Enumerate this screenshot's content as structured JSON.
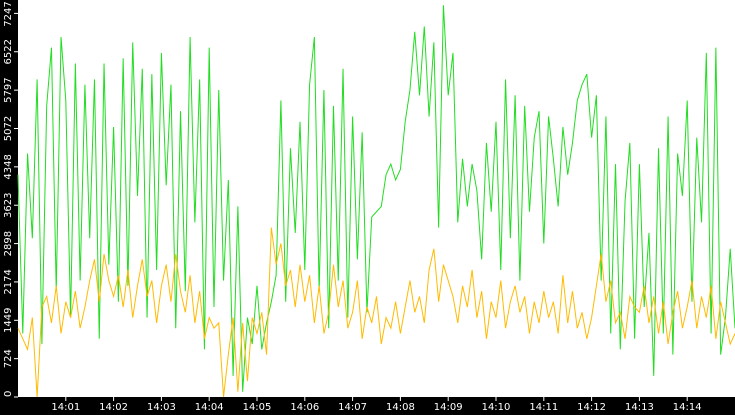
{
  "chart_data": {
    "type": "line",
    "categories": [
      null,
      null,
      null,
      null,
      null,
      null,
      null,
      null,
      null,
      null,
      "14:01",
      null,
      null,
      null,
      null,
      null,
      null,
      null,
      null,
      null,
      "14:02",
      null,
      null,
      null,
      null,
      null,
      null,
      null,
      null,
      null,
      "14:03",
      null,
      null,
      null,
      null,
      null,
      null,
      null,
      null,
      null,
      "14:04",
      null,
      null,
      null,
      null,
      null,
      null,
      null,
      null,
      null,
      "14:05",
      null,
      null,
      null,
      null,
      null,
      null,
      null,
      null,
      null,
      "14:06",
      null,
      null,
      null,
      null,
      null,
      null,
      null,
      null,
      null,
      "14:07",
      null,
      null,
      null,
      null,
      null,
      null,
      null,
      null,
      null,
      "14:08",
      null,
      null,
      null,
      null,
      null,
      null,
      null,
      null,
      null,
      "14:09",
      null,
      null,
      null,
      null,
      null,
      null,
      null,
      null,
      null,
      "14:10",
      null,
      null,
      null,
      null,
      null,
      null,
      null,
      null,
      null,
      "14:11",
      null,
      null,
      null,
      null,
      null,
      null,
      null,
      null,
      null,
      "14:12",
      null,
      null,
      null,
      null,
      null,
      null,
      null,
      null,
      null,
      "14:13",
      null,
      null,
      null,
      null,
      null,
      null,
      null,
      null,
      null,
      "14:14",
      null,
      null,
      null,
      null,
      null,
      null,
      null,
      null,
      null,
      null
    ],
    "series": [
      {
        "color": "#22dd22",
        "values": [
          4200,
          1200,
          4600,
          3000,
          6000,
          1000,
          5500,
          6600,
          2000,
          6800,
          5600,
          1500,
          6300,
          2200,
          5900,
          3000,
          6000,
          1100,
          6300,
          2500,
          5100,
          1800,
          6400,
          2100,
          6700,
          3800,
          6200,
          1500,
          6100,
          2400,
          6500,
          4000,
          5900,
          1300,
          5400,
          2000,
          6800,
          3300,
          6000,
          900,
          6600,
          1700,
          5800,
          2200,
          4100,
          400,
          3600,
          100,
          1500,
          1000,
          2100,
          900,
          1400,
          1800,
          2300,
          5600,
          1800,
          4700,
          3100,
          5200,
          2400,
          5900,
          6800,
          2000,
          5800,
          1300,
          5500,
          2200,
          6200,
          1500,
          5300,
          2600,
          5000,
          1600,
          3400,
          3500,
          3600,
          4200,
          4400,
          4100,
          4300,
          5200,
          5800,
          6900,
          5700,
          7000,
          5300,
          6700,
          3200,
          7400,
          5700,
          6500,
          3300,
          4500,
          3600,
          4400,
          3900,
          2600,
          4800,
          3500,
          5200,
          2400,
          6000,
          3000,
          5700,
          2200,
          5500,
          3500,
          4900,
          5400,
          2900,
          5300,
          4500,
          3600,
          5100,
          4200,
          4800,
          5600,
          5900,
          6100,
          4900,
          5700,
          2200,
          5300,
          1200,
          4400,
          900,
          3700,
          4800,
          1100,
          4400,
          1700,
          3100,
          400,
          4700,
          1200,
          5300,
          800,
          4600,
          3800,
          5600,
          1800,
          4900,
          3300,
          6500,
          1200,
          6600,
          800,
          1500,
          2800,
          1300
        ]
      },
      {
        "color": "#ffbb00",
        "values": [
          1300,
          1100,
          900,
          1500,
          0,
          1700,
          1900,
          1400,
          2100,
          1200,
          1800,
          1500,
          2000,
          1300,
          1700,
          2200,
          2600,
          1800,
          2700,
          2200,
          1900,
          2300,
          1700,
          2400,
          1500,
          2100,
          2600,
          1900,
          2200,
          1400,
          2100,
          2500,
          1800,
          2700,
          2000,
          1600,
          2300,
          1400,
          2000,
          1100,
          1500,
          1300,
          1400,
          0,
          800,
          1500,
          100,
          1400,
          300,
          1500,
          1200,
          1600,
          800,
          3200,
          2500,
          2900,
          2100,
          2400,
          1700,
          2500,
          1800,
          2300,
          1400,
          2100,
          1200,
          1600,
          2500,
          1700,
          2200,
          1300,
          1600,
          2200,
          1100,
          1700,
          1400,
          1900,
          1000,
          1500,
          1300,
          1800,
          1200,
          1700,
          2200,
          1600,
          1900,
          1400,
          2400,
          2800,
          1800,
          2500,
          2200,
          1900,
          1400,
          2100,
          1700,
          2400,
          1500,
          2000,
          1100,
          1800,
          1500,
          2200,
          1300,
          1800,
          2100,
          1600,
          1900,
          1200,
          1800,
          1400,
          2000,
          1500,
          1800,
          1200,
          2300,
          1400,
          2000,
          1300,
          1600,
          1100,
          1500,
          2100,
          2700,
          1800,
          2200,
          1400,
          1600,
          1100,
          1900,
          1700,
          1600,
          2100,
          1400,
          1900,
          1200,
          1800,
          1000,
          1600,
          2000,
          1300,
          1700,
          2200,
          1300,
          1900,
          1500,
          2100,
          1100,
          1800,
          1400,
          1000,
          1200
        ]
      }
    ],
    "ylim": [
      0,
      7500
    ],
    "yticks": [
      0,
      724,
      1449,
      2174,
      2898,
      3623,
      4348,
      5072,
      5797,
      6522,
      7247
    ],
    "grid": false
  }
}
